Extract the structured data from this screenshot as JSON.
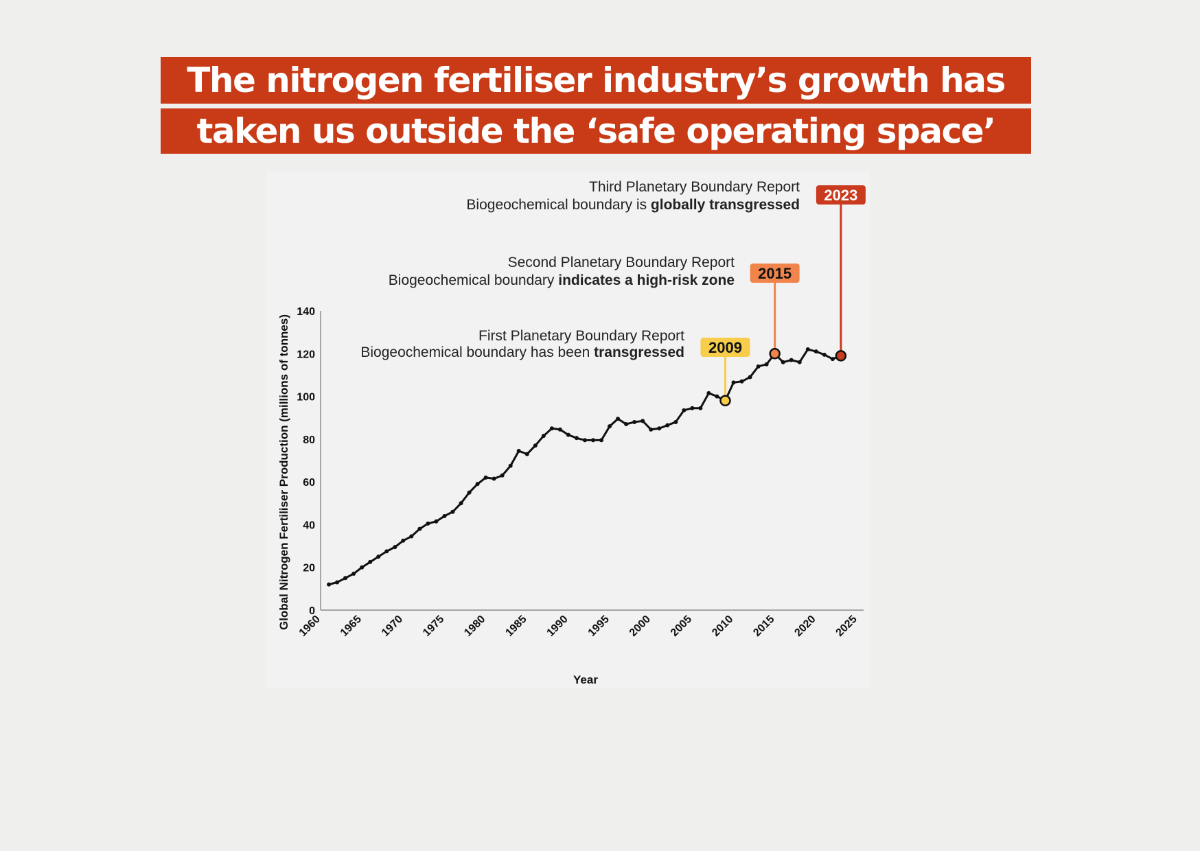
{
  "title": {
    "line1": "The nitrogen fertiliser industry’s growth has",
    "line2": "taken us outside the ‘safe operating space’"
  },
  "colors": {
    "banner": "#c93a16",
    "y2009": "#f7cd4b",
    "y2015": "#f0844a",
    "y2023": "#c93a1e",
    "line": "#111111"
  },
  "annotations": [
    {
      "year": "2009",
      "line1": "First Planetary Boundary Report",
      "line2_normal": "Biogeochemical boundary has been ",
      "line2_bold": "transgressed"
    },
    {
      "year": "2015",
      "line1": "Second Planetary Boundary Report",
      "line2_normal": "Biogeochemical boundary ",
      "line2_bold": "indicates a high-risk zone"
    },
    {
      "year": "2023",
      "line1": "Third Planetary Boundary Report",
      "line2_normal": "Biogeochemical boundary is ",
      "line2_bold": "globally transgressed"
    }
  ],
  "chart_data": {
    "type": "line",
    "xlabel": "Year",
    "ylabel": "Global Nitrogen Fertiliser Production (millions of tonnes)",
    "xlim": [
      1960,
      2025
    ],
    "ylim": [
      0,
      140
    ],
    "xticks": [
      "1960",
      "1965",
      "1970",
      "1975",
      "1980",
      "1985",
      "1990",
      "1995",
      "2000",
      "2005",
      "2010",
      "2015",
      "2020",
      "2025"
    ],
    "yticks": [
      "0",
      "20",
      "40",
      "60",
      "80",
      "100",
      "120",
      "140"
    ],
    "grid": false,
    "highlighted_years": [
      2009,
      2015,
      2023
    ],
    "x": [
      1961,
      1962,
      1963,
      1964,
      1965,
      1966,
      1967,
      1968,
      1969,
      1970,
      1971,
      1972,
      1973,
      1974,
      1975,
      1976,
      1977,
      1978,
      1979,
      1980,
      1981,
      1982,
      1983,
      1984,
      1985,
      1986,
      1987,
      1988,
      1989,
      1990,
      1991,
      1992,
      1993,
      1994,
      1995,
      1996,
      1997,
      1998,
      1999,
      2000,
      2001,
      2002,
      2003,
      2004,
      2005,
      2006,
      2007,
      2008,
      2009,
      2010,
      2011,
      2012,
      2013,
      2014,
      2015,
      2016,
      2017,
      2018,
      2019,
      2020,
      2021,
      2022,
      2023
    ],
    "values": [
      12,
      13,
      15,
      17,
      20,
      22.5,
      25,
      27.5,
      29.5,
      32.5,
      34.5,
      38,
      40.5,
      41.5,
      44,
      46,
      50,
      55,
      59,
      62,
      61.5,
      63,
      67.5,
      74.5,
      73,
      77,
      81.5,
      85,
      84.5,
      82,
      80.5,
      79.5,
      79.5,
      79.5,
      86,
      89.5,
      87,
      88,
      88.5,
      84.5,
      85,
      86.5,
      88,
      93.5,
      94.5,
      94.5,
      101.5,
      100,
      98,
      106.5,
      107,
      109,
      114,
      115,
      120,
      116,
      117,
      116,
      122,
      121,
      119.5,
      117.5,
      119
    ]
  }
}
